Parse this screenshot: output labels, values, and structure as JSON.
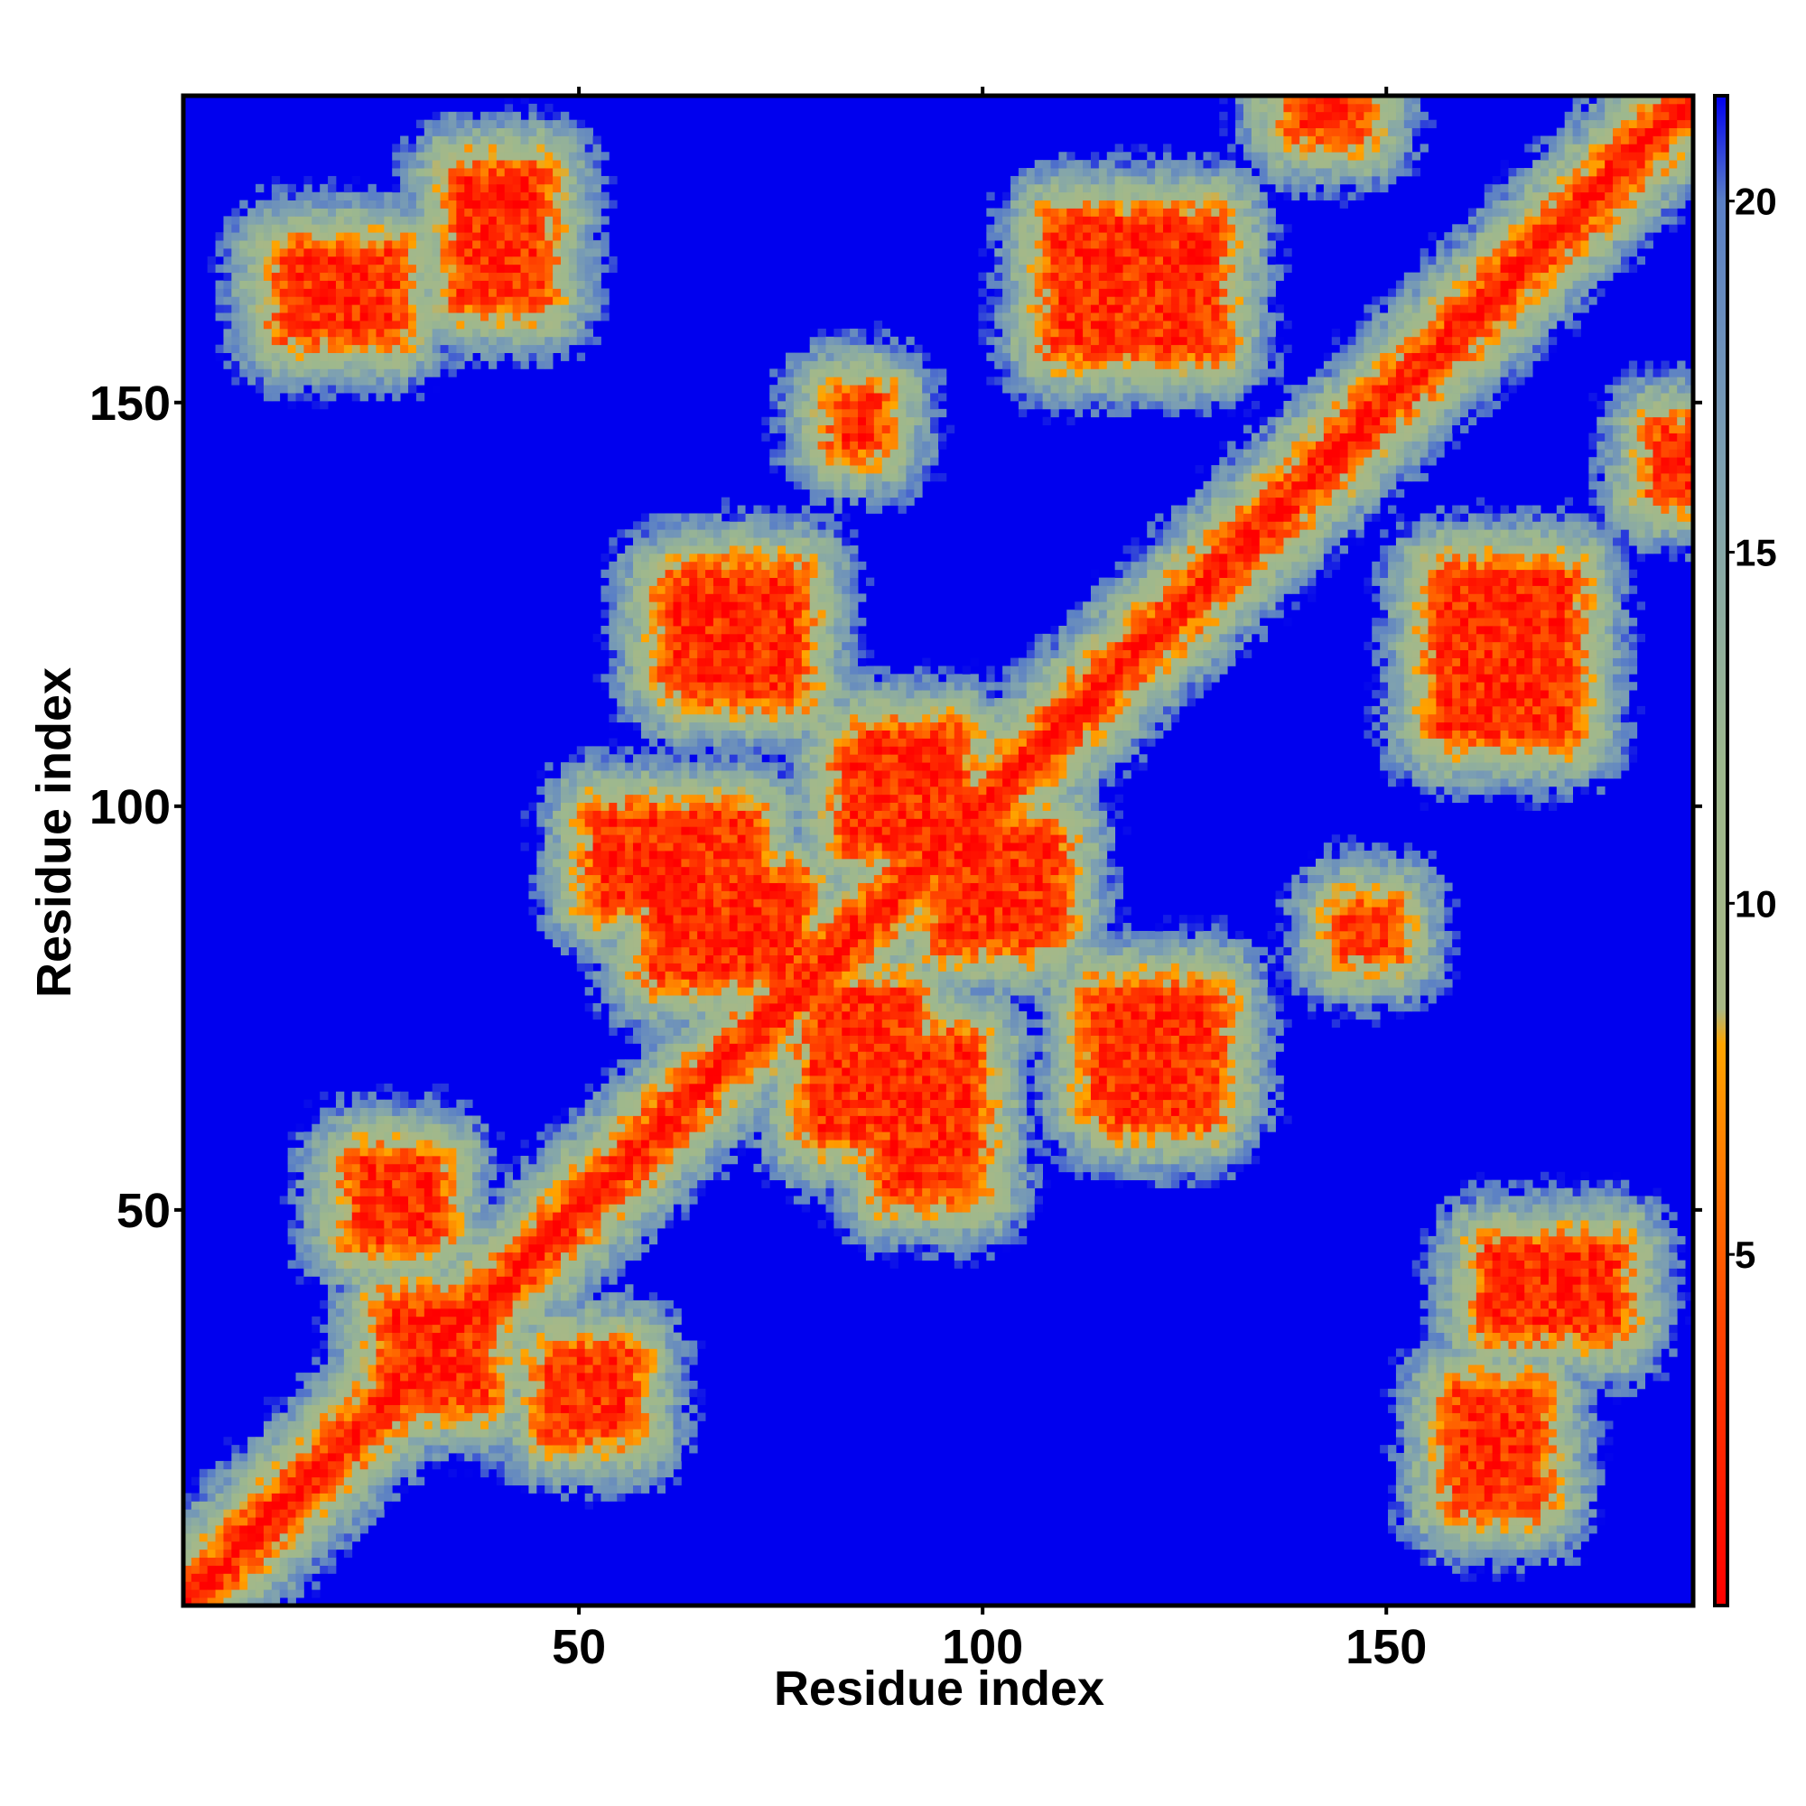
{
  "chart_data": {
    "type": "heatmap",
    "title": "",
    "xlabel": "Residue index",
    "ylabel": "Residue index",
    "xlim": [
      1,
      188
    ],
    "ylim": [
      1,
      188
    ],
    "n_residues": 188,
    "x_ticks": [
      50,
      100,
      150
    ],
    "y_ticks": [
      50,
      100,
      150
    ],
    "colorbar": {
      "range": [
        0,
        21.5
      ],
      "ticks": [
        5,
        10,
        15,
        20
      ],
      "stops": [
        {
          "value": 0,
          "color": "#ff0000"
        },
        {
          "value": 4,
          "color": "#ff4400"
        },
        {
          "value": 8,
          "color": "#ffa500"
        },
        {
          "value": 8.5,
          "color": "#a8b886"
        },
        {
          "value": 12,
          "color": "#9db88e"
        },
        {
          "value": 16,
          "color": "#7fa2b0"
        },
        {
          "value": 20,
          "color": "#5a7fc6"
        },
        {
          "value": 21.5,
          "color": "#0000ee"
        }
      ]
    },
    "background_color": "#0000ee",
    "diagonal": "residue i to residue i, distance ~0 (red)",
    "contact_bands": [
      {
        "x": [
          28,
          37
        ],
        "y": [
          27,
          36
        ]
      },
      {
        "x": [
          48,
          55
        ],
        "y": [
          26,
          31
        ]
      },
      {
        "x": [
          23,
          30
        ],
        "y": [
          47,
          55
        ]
      },
      {
        "x": [
          53,
          70
        ],
        "y": [
          89,
          98
        ]
      },
      {
        "x": [
          80,
          90
        ],
        "y": [
          60,
          76
        ]
      },
      {
        "x": [
          84,
          95
        ],
        "y": [
          96,
          106
        ]
      },
      {
        "x": [
          96,
          108
        ],
        "y": [
          86,
          96
        ]
      },
      {
        "x": [
          115,
          128
        ],
        "y": [
          64,
          76
        ]
      },
      {
        "x": [
          62,
          72
        ],
        "y": [
          117,
          127
        ]
      },
      {
        "x": [
          83,
          86
        ],
        "y": [
          146,
          150
        ]
      },
      {
        "x": [
          110,
          128
        ],
        "y": [
          158,
          172
        ]
      },
      {
        "x": [
          162,
          172
        ],
        "y": [
          110,
          126
        ]
      },
      {
        "x": [
          36,
          44
        ],
        "y": [
          168,
          177
        ]
      },
      {
        "x": [
          14,
          26
        ],
        "y": [
          160,
          166
        ]
      },
      {
        "x": [
          164,
          178
        ],
        "y": [
          36,
          44
        ]
      },
      {
        "x": [
          161,
          168
        ],
        "y": [
          14,
          26
        ]
      },
      {
        "x": [
          146,
          150
        ],
        "y": [
          83,
          86
        ]
      },
      {
        "x": [
          140,
          146
        ],
        "y": [
          185,
          188
        ]
      }
    ]
  }
}
